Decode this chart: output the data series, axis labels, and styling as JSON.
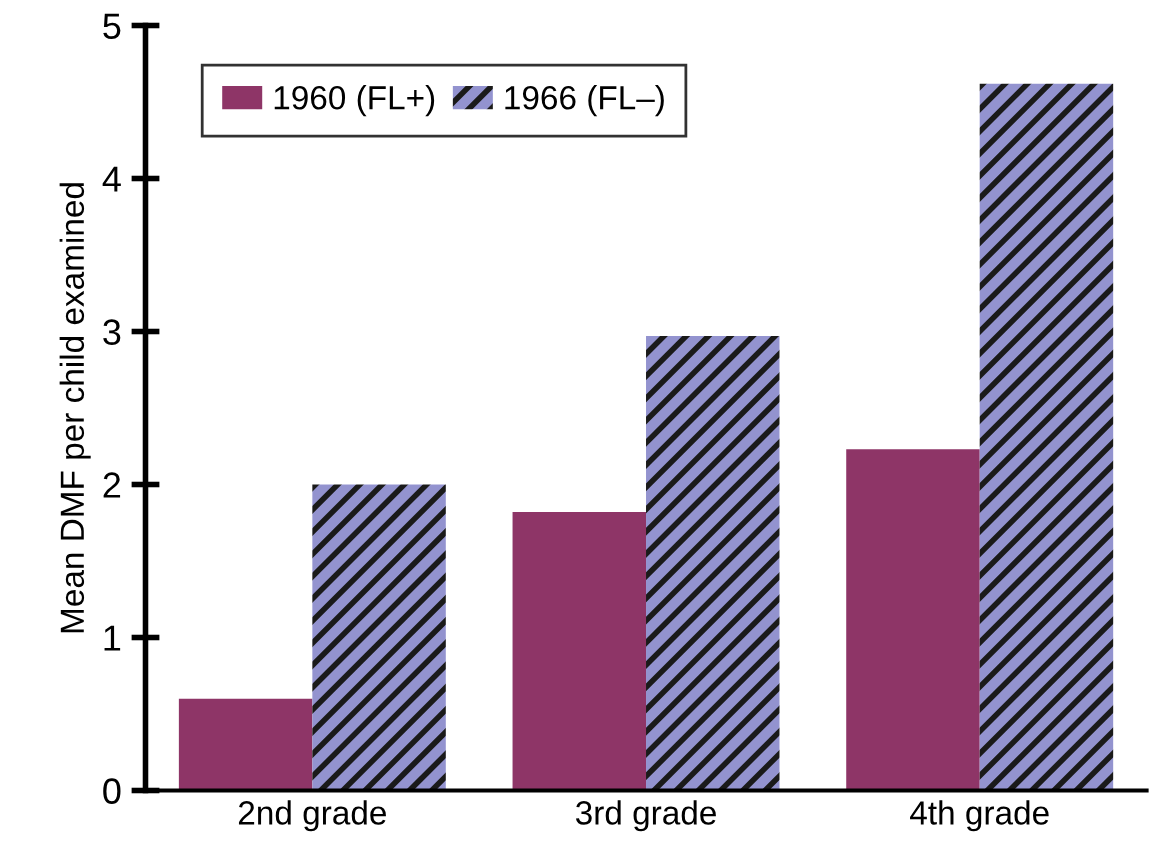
{
  "chart_data": {
    "type": "bar",
    "ylabel": "Mean DMF per child examined",
    "categories": [
      "2nd grade",
      "3rd grade",
      "4th grade"
    ],
    "series": [
      {
        "name": "1960 (FL+)",
        "color": "#8e3567",
        "values": [
          0.6,
          1.82,
          2.23
        ]
      },
      {
        "name": "1966 (FL–)",
        "color": "#9393cf",
        "values": [
          2.0,
          2.97,
          4.62
        ]
      }
    ],
    "ylim": [
      0,
      5
    ],
    "yticks": [
      0,
      1,
      2,
      3,
      4,
      5
    ],
    "grid": false,
    "legend": "top left"
  }
}
